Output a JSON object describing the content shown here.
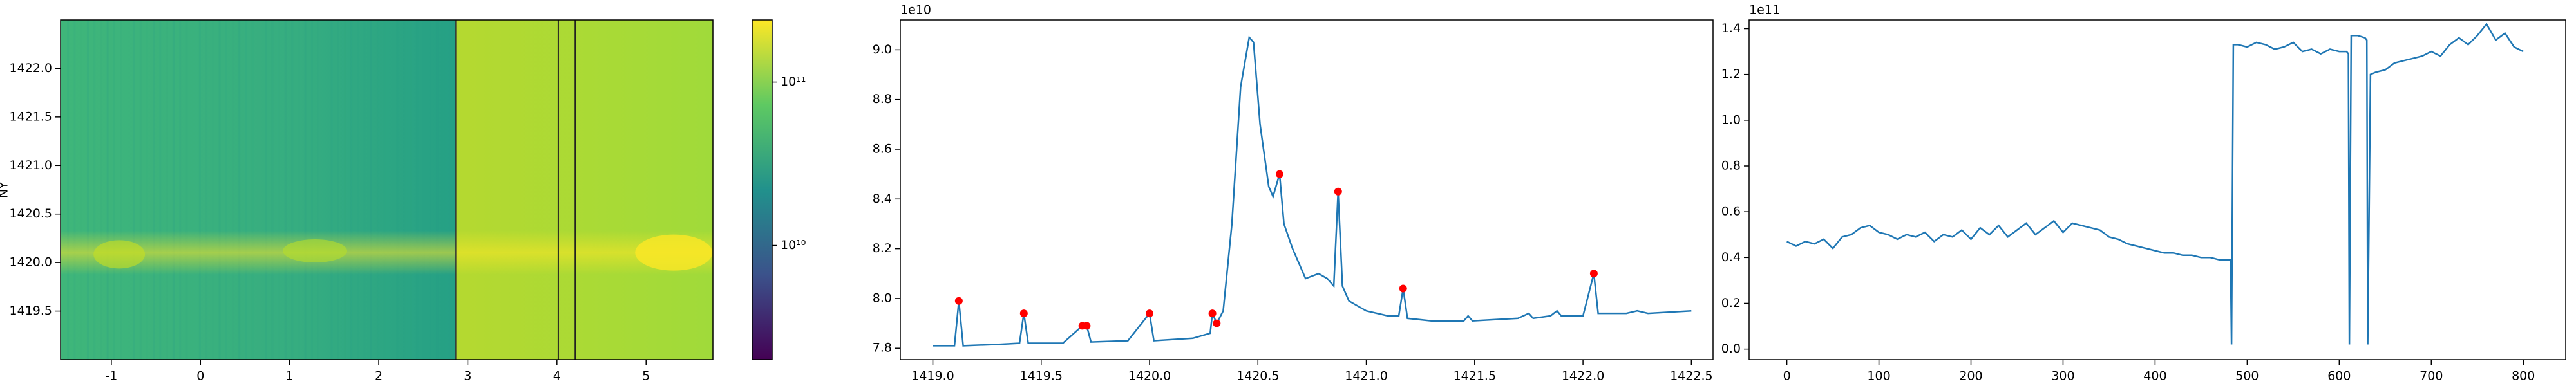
{
  "chart_data": [
    {
      "type": "heatmap",
      "ylabel": "NY",
      "xlim": [
        -1.57,
        5.75
      ],
      "xticks": [
        -1,
        0,
        1,
        2,
        3,
        4,
        5
      ],
      "ylim": [
        1419.0,
        1422.5
      ],
      "yticks": [
        1419.5,
        {
          "value": 1420.0,
          "label": "1420.0"
        },
        1420.5,
        {
          "value": 1421.0,
          "label": "1421.0"
        },
        1421.5,
        {
          "value": 1422.0,
          "label": "1422.0"
        }
      ],
      "colorbar": {
        "log": true,
        "clim": [
          2000000000,
          240000000000
        ],
        "ticks": [
          {
            "value": 10000000000,
            "label": "10¹⁰"
          },
          {
            "value": 100000000000,
            "label": "10¹¹"
          }
        ]
      }
    },
    {
      "type": "line",
      "offset_text": "1e10",
      "xlim": [
        1418.85,
        1422.6
      ],
      "xticks": [
        {
          "value": 1419.0,
          "label": "1419.0"
        },
        1419.5,
        {
          "value": 1420.0,
          "label": "1420.0"
        },
        1420.5,
        {
          "value": 1421.0,
          "label": "1421.0"
        },
        1421.5,
        {
          "value": 1422.0,
          "label": "1422.0"
        },
        1422.5
      ],
      "ylim": [
        7.754,
        9.12
      ],
      "yticks": [
        7.8,
        {
          "value": 8.0,
          "label": "8.0"
        },
        8.2,
        8.4,
        8.6,
        8.8,
        {
          "value": 9.0,
          "label": "9.0"
        }
      ],
      "series": [
        {
          "color": "#1f77b4",
          "x": [
            1419.0,
            1419.1,
            1419.12,
            1419.14,
            1419.3,
            1419.4,
            1419.42,
            1419.44,
            1419.6,
            1419.69,
            1419.71,
            1419.73,
            1419.9,
            1420.0,
            1420.02,
            1420.2,
            1420.28,
            1420.29,
            1420.31,
            1420.34,
            1420.38,
            1420.42,
            1420.46,
            1420.48,
            1420.51,
            1420.55,
            1420.57,
            1420.6,
            1420.62,
            1420.66,
            1420.72,
            1420.78,
            1420.82,
            1420.85,
            1420.87,
            1420.89,
            1420.92,
            1421.0,
            1421.1,
            1421.15,
            1421.17,
            1421.19,
            1421.3,
            1421.45,
            1421.47,
            1421.49,
            1421.7,
            1421.75,
            1421.77,
            1421.85,
            1421.88,
            1421.9,
            1422.0,
            1422.05,
            1422.07,
            1422.2,
            1422.25,
            1422.3,
            1422.5
          ],
          "values": [
            7.81,
            7.81,
            7.99,
            7.81,
            7.815,
            7.82,
            7.94,
            7.82,
            7.82,
            7.89,
            7.89,
            7.825,
            7.83,
            7.94,
            7.83,
            7.84,
            7.86,
            7.94,
            7.9,
            7.95,
            8.3,
            8.85,
            9.05,
            9.03,
            8.7,
            8.45,
            8.41,
            8.5,
            8.3,
            8.2,
            8.08,
            8.1,
            8.08,
            8.05,
            8.43,
            8.05,
            7.99,
            7.95,
            7.93,
            7.93,
            8.04,
            7.92,
            7.91,
            7.91,
            7.93,
            7.91,
            7.92,
            7.94,
            7.92,
            7.93,
            7.95,
            7.93,
            7.93,
            8.1,
            7.94,
            7.94,
            7.95,
            7.94,
            7.95
          ]
        },
        {
          "color": "#ff0000",
          "marker": true,
          "x": [
            1419.12,
            1419.42,
            1419.69,
            1419.71,
            1420.0,
            1420.29,
            1420.31,
            1420.6,
            1420.87,
            1421.17,
            1422.05
          ],
          "values": [
            7.99,
            7.94,
            7.89,
            7.89,
            7.94,
            7.94,
            7.9,
            8.5,
            8.43,
            8.04,
            8.1
          ]
        }
      ]
    },
    {
      "type": "line",
      "offset_text": "1e11",
      "xlim": [
        -41,
        846
      ],
      "xticks": [
        0,
        100,
        200,
        300,
        400,
        500,
        600,
        700,
        800
      ],
      "ylim": [
        -0.046,
        1.438
      ],
      "yticks": [
        {
          "value": 0.0,
          "label": "0.0"
        },
        0.2,
        0.4,
        0.6,
        0.8,
        {
          "value": 1.0,
          "label": "1.0"
        },
        1.2,
        1.4
      ],
      "series": [
        {
          "color": "#1f77b4",
          "x": [
            0,
            10,
            20,
            30,
            40,
            50,
            60,
            70,
            80,
            90,
            100,
            110,
            120,
            130,
            140,
            150,
            160,
            170,
            180,
            190,
            200,
            210,
            220,
            230,
            240,
            250,
            260,
            270,
            280,
            290,
            300,
            310,
            320,
            330,
            340,
            350,
            360,
            370,
            380,
            390,
            400,
            410,
            420,
            430,
            440,
            450,
            460,
            470,
            480,
            482,
            483,
            485,
            490,
            500,
            510,
            520,
            530,
            540,
            550,
            560,
            570,
            580,
            590,
            600,
            608,
            610,
            611,
            613,
            620,
            628,
            630,
            631,
            634,
            640,
            650,
            660,
            670,
            680,
            690,
            700,
            710,
            720,
            730,
            740,
            750,
            760,
            770,
            780,
            790,
            800
          ],
          "values": [
            0.47,
            0.45,
            0.47,
            0.46,
            0.48,
            0.44,
            0.49,
            0.5,
            0.53,
            0.54,
            0.51,
            0.5,
            0.48,
            0.5,
            0.49,
            0.51,
            0.47,
            0.5,
            0.49,
            0.52,
            0.48,
            0.53,
            0.5,
            0.54,
            0.49,
            0.52,
            0.55,
            0.5,
            0.53,
            0.56,
            0.51,
            0.55,
            0.54,
            0.53,
            0.52,
            0.49,
            0.48,
            0.46,
            0.45,
            0.44,
            0.43,
            0.42,
            0.42,
            0.41,
            0.41,
            0.4,
            0.4,
            0.39,
            0.39,
            0.39,
            0.02,
            1.33,
            1.33,
            1.32,
            1.34,
            1.33,
            1.31,
            1.32,
            1.34,
            1.3,
            1.31,
            1.29,
            1.31,
            1.3,
            1.3,
            1.29,
            0.02,
            1.37,
            1.37,
            1.36,
            1.35,
            0.02,
            1.2,
            1.21,
            1.22,
            1.25,
            1.26,
            1.27,
            1.28,
            1.3,
            1.28,
            1.33,
            1.36,
            1.33,
            1.37,
            1.42,
            1.35,
            1.38,
            1.32,
            1.3
          ]
        }
      ]
    }
  ]
}
